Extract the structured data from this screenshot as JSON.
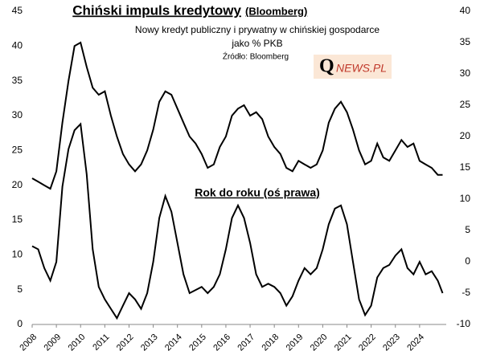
{
  "chart_data": {
    "type": "line",
    "title": "Chiński  impuls kredytowy",
    "title_note": "(Bloomberg)",
    "subtitle": "Nowy kredyt publiczny i prywatny w chińskiej gospodarce",
    "subtitle2": "jako % PKB",
    "source": "Źródło: Bloomberg",
    "logo": {
      "q": "Q",
      "text": "NEWS.PL"
    },
    "annotation": "Rok do roku (oś prawa)",
    "x": [
      2008.0,
      2008.25,
      2008.5,
      2008.75,
      2009.0,
      2009.25,
      2009.5,
      2009.75,
      2010.0,
      2010.25,
      2010.5,
      2010.75,
      2011.0,
      2011.25,
      2011.5,
      2011.75,
      2012.0,
      2012.25,
      2012.5,
      2012.75,
      2013.0,
      2013.25,
      2013.5,
      2013.75,
      2014.0,
      2014.25,
      2014.5,
      2014.75,
      2015.0,
      2015.25,
      2015.5,
      2015.75,
      2016.0,
      2016.25,
      2016.5,
      2016.75,
      2017.0,
      2017.25,
      2017.5,
      2017.75,
      2018.0,
      2018.25,
      2018.5,
      2018.75,
      2019.0,
      2019.25,
      2019.5,
      2019.75,
      2020.0,
      2020.25,
      2020.5,
      2020.75,
      2021.0,
      2021.25,
      2021.5,
      2021.75,
      2022.0,
      2022.25,
      2022.5,
      2022.75,
      2023.0,
      2023.25,
      2023.5,
      2023.75,
      2024.0,
      2024.25,
      2024.5,
      2024.75,
      2024.95
    ],
    "series": [
      {
        "color": "#000000",
        "values": [
          21,
          20.5,
          20,
          19.5,
          22,
          29,
          35,
          40,
          40.5,
          37,
          34,
          33,
          33.5,
          30,
          27,
          24.5,
          23,
          22,
          23,
          25,
          28,
          32,
          33.5,
          33,
          31,
          29,
          27,
          26,
          24.5,
          22.5,
          23,
          25.5,
          27,
          30,
          31,
          31.5,
          30,
          30.5,
          29.5,
          27,
          25.5,
          24.5,
          22.5,
          22,
          23.5,
          23,
          22.5,
          23,
          25,
          29,
          31,
          32,
          30.5,
          28,
          25,
          23,
          23.5,
          26,
          24,
          23.5,
          25,
          26.5,
          25.5,
          26,
          23.5,
          23,
          22.5,
          21.5,
          21.5
        ]
      },
      {
        "color": "#000000",
        "axis": "y2",
        "values": [
          2.5,
          2,
          -1,
          -3,
          0,
          12,
          18,
          21,
          22,
          14,
          2,
          -4,
          -6,
          -7.5,
          -9,
          -7,
          -5,
          -6,
          -7.5,
          -5,
          0,
          7,
          10.5,
          8,
          3,
          -2,
          -5,
          -4.5,
          -4,
          -5,
          -4,
          -2,
          2,
          7,
          9,
          7,
          3,
          -2,
          -4,
          -3.5,
          -4,
          -5,
          -7,
          -5.5,
          -3,
          -1,
          -2,
          -1,
          2,
          6,
          8.5,
          9,
          6,
          0,
          -6,
          -8.5,
          -7,
          -2.5,
          -1,
          -0.5,
          1,
          2,
          -1,
          -2,
          0,
          -2,
          -1.5,
          -3,
          -5
        ]
      }
    ],
    "xlim": [
      2008,
      2025.1
    ],
    "xticks": [
      2008,
      2009,
      2010,
      2011,
      2012,
      2013,
      2014,
      2015,
      2016,
      2017,
      2018,
      2019,
      2020,
      2021,
      2022,
      2023,
      2024
    ],
    "ylim": [
      0,
      45
    ],
    "yticks": [
      0,
      5,
      10,
      15,
      20,
      25,
      30,
      35,
      40,
      45
    ],
    "y2lim": [
      -10,
      40
    ],
    "y2ticks": [
      -10,
      -5,
      0,
      5,
      10,
      15,
      20,
      25,
      30,
      35,
      40
    ]
  }
}
